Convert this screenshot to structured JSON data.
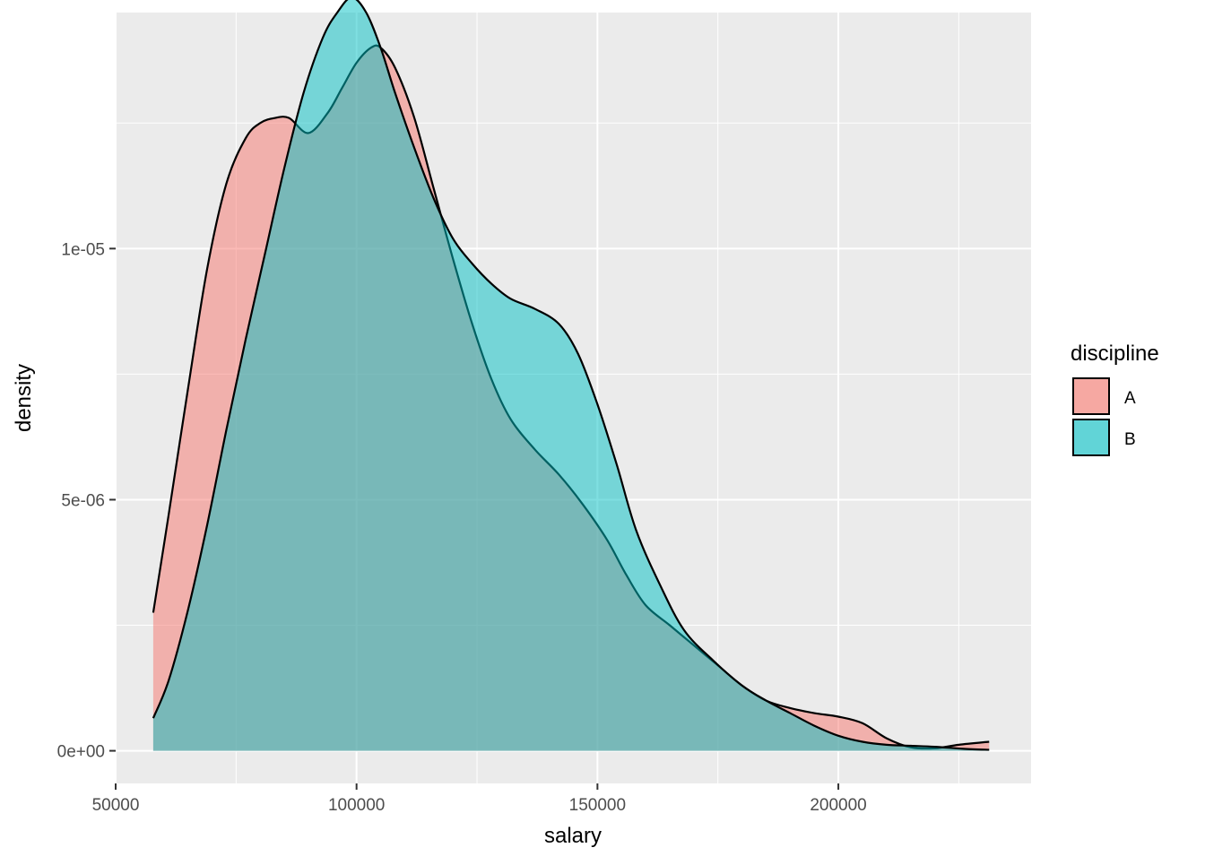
{
  "chart_data": {
    "type": "area",
    "xlabel": "salary",
    "ylabel": "density",
    "xlim": [
      50000,
      240000
    ],
    "ylim": [
      -6.5e-07,
      1.47e-05
    ],
    "x_ticks": [
      50000,
      100000,
      150000,
      200000
    ],
    "x_tick_labels": [
      "50000",
      "100000",
      "150000",
      "200000"
    ],
    "y_ticks": [
      0,
      5e-06,
      1e-05
    ],
    "y_tick_labels": [
      "0e+00",
      "5e-06",
      "1e-05"
    ],
    "grid": true,
    "legend": {
      "title": "discipline",
      "position": "right",
      "entries": [
        {
          "label": "A",
          "color": "#F8766D"
        },
        {
          "label": "B",
          "color": "#00BFC4"
        }
      ]
    },
    "series": [
      {
        "name": "A",
        "color": "#F8766D",
        "fill_opacity": 0.5,
        "points": [
          [
            57800,
            2.75e-06
          ],
          [
            61000,
            4.7e-06
          ],
          [
            65000,
            7.2e-06
          ],
          [
            69000,
            9.6e-06
          ],
          [
            73000,
            1.13e-05
          ],
          [
            77000,
            1.22e-05
          ],
          [
            80000,
            1.25e-05
          ],
          [
            83000,
            1.26e-05
          ],
          [
            86000,
            1.26e-05
          ],
          [
            90000,
            1.23e-05
          ],
          [
            94000,
            1.27e-05
          ],
          [
            97000,
            1.32e-05
          ],
          [
            100000,
            1.37e-05
          ],
          [
            103000,
            1.4e-05
          ],
          [
            105000,
            1.4e-05
          ],
          [
            108000,
            1.36e-05
          ],
          [
            112000,
            1.26e-05
          ],
          [
            116000,
            1.12e-05
          ],
          [
            120000,
            9.8e-06
          ],
          [
            124000,
            8.5e-06
          ],
          [
            128000,
            7.4e-06
          ],
          [
            132000,
            6.6e-06
          ],
          [
            137000,
            6e-06
          ],
          [
            142000,
            5.5e-06
          ],
          [
            147000,
            4.9e-06
          ],
          [
            152000,
            4.2e-06
          ],
          [
            156000,
            3.5e-06
          ],
          [
            160000,
            2.9e-06
          ],
          [
            165000,
            2.5e-06
          ],
          [
            170000,
            2.1e-06
          ],
          [
            175000,
            1.7e-06
          ],
          [
            180000,
            1.3e-06
          ],
          [
            185000,
            1e-06
          ],
          [
            190000,
            8.5e-07
          ],
          [
            195000,
            7.5e-07
          ],
          [
            200000,
            6.8e-07
          ],
          [
            205000,
            5.5e-07
          ],
          [
            210000,
            2.5e-07
          ],
          [
            215000,
            7e-08
          ],
          [
            220000,
            5e-08
          ],
          [
            225000,
            1.2e-07
          ],
          [
            231300,
            1.8e-07
          ]
        ]
      },
      {
        "name": "B",
        "color": "#00BFC4",
        "fill_opacity": 0.5,
        "points": [
          [
            57800,
            6.5e-07
          ],
          [
            61000,
            1.4e-06
          ],
          [
            65000,
            2.8e-06
          ],
          [
            69000,
            4.5e-06
          ],
          [
            73000,
            6.4e-06
          ],
          [
            77000,
            8.2e-06
          ],
          [
            81000,
            9.9e-06
          ],
          [
            85000,
            1.16e-05
          ],
          [
            89000,
            1.31e-05
          ],
          [
            93000,
            1.42e-05
          ],
          [
            96000,
            1.47e-05
          ],
          [
            99000,
            1.5e-05
          ],
          [
            102000,
            1.47e-05
          ],
          [
            105000,
            1.4e-05
          ],
          [
            108000,
            1.31e-05
          ],
          [
            112000,
            1.2e-05
          ],
          [
            116000,
            1.1e-05
          ],
          [
            120000,
            1.02e-05
          ],
          [
            124000,
            9.7e-06
          ],
          [
            128000,
            9.3e-06
          ],
          [
            132000,
            9e-06
          ],
          [
            137000,
            8.8e-06
          ],
          [
            142000,
            8.5e-06
          ],
          [
            146000,
            7.9e-06
          ],
          [
            150000,
            6.9e-06
          ],
          [
            154000,
            5.7e-06
          ],
          [
            158000,
            4.4e-06
          ],
          [
            163000,
            3.3e-06
          ],
          [
            168000,
            2.4e-06
          ],
          [
            174000,
            1.8e-06
          ],
          [
            180000,
            1.3e-06
          ],
          [
            185000,
            1e-06
          ],
          [
            190000,
            7.5e-07
          ],
          [
            195000,
            5e-07
          ],
          [
            200000,
            3e-07
          ],
          [
            205000,
            1.8e-07
          ],
          [
            210000,
            1.2e-07
          ],
          [
            215000,
            1e-07
          ],
          [
            220000,
            8e-08
          ],
          [
            226000,
            4e-08
          ],
          [
            231300,
            2e-08
          ]
        ]
      }
    ]
  }
}
